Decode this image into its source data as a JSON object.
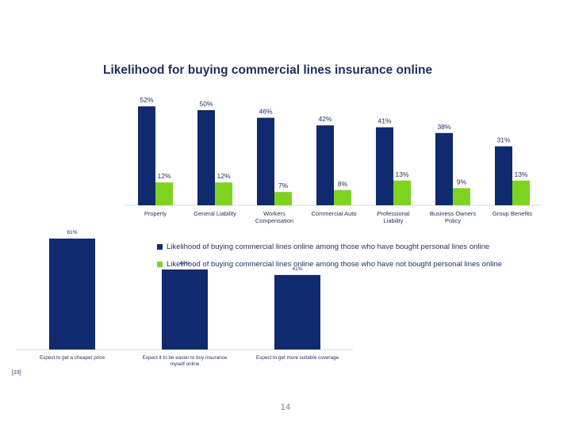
{
  "slide": {
    "title": "Likelihood for buying commercial lines insurance online",
    "footnote": "[23]",
    "page_number": "14"
  },
  "chart_data": [
    {
      "type": "bar",
      "title": "Likelihood for buying commercial lines insurance online",
      "categories": [
        "Property",
        "General Liability",
        "Workers Compensation",
        "Commercial Auto",
        "Professional Liability",
        "Business Owners Policy",
        "Group Benefits"
      ],
      "category_lines": [
        [
          "Property"
        ],
        [
          "General Liability"
        ],
        [
          "Workers",
          "Compensation"
        ],
        [
          "Commercial Auto"
        ],
        [
          "Professional",
          "Liability"
        ],
        [
          "Business Owners",
          "Policy"
        ],
        [
          "Group Benefits"
        ]
      ],
      "series": [
        {
          "name": "Likelihood of buying commercial lines online among those who have bought personal lines online",
          "color": "#0f2a6e",
          "values": [
            52,
            50,
            46,
            42,
            41,
            38,
            31
          ]
        },
        {
          "name": "Likelihood of buying commercial lines online among those who have not bought personal lines online",
          "color": "#7ed321",
          "values": [
            12,
            12,
            7,
            8,
            13,
            9,
            13
          ]
        }
      ],
      "value_suffix": "%",
      "ylim": [
        0,
        60
      ],
      "grid": false,
      "legend_position": "bottom"
    },
    {
      "type": "bar",
      "categories": [
        "Expect to get a cheaper price",
        "Expect it to be easier to buy insurance myself online",
        "Expect to get more suitable coverage"
      ],
      "category_lines": [
        [
          "Expect to get a cheaper price"
        ],
        [
          "Expect it to be easier to buy insurance",
          "myself online"
        ],
        [
          "Expect to get more suitable coverage"
        ]
      ],
      "series": [
        {
          "color": "#0f2a6e",
          "values": [
            61,
            44,
            41
          ]
        }
      ],
      "value_suffix": "%",
      "ylim": [
        0,
        65
      ],
      "grid": false
    }
  ]
}
